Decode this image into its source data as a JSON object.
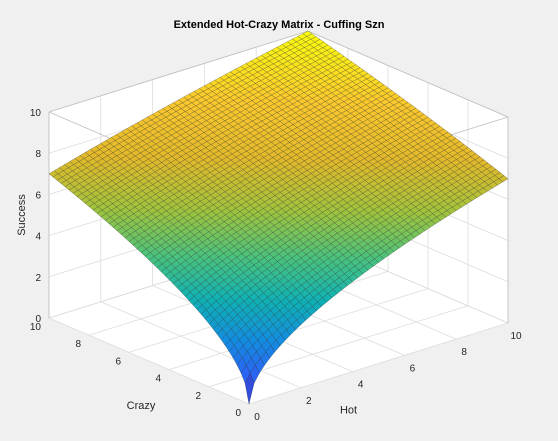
{
  "chart_data": {
    "type": "surface",
    "title": "Extended Hot-Crazy Matrix - Cuffing Szn",
    "xlabel": "Hot",
    "ylabel": "Crazy",
    "zlabel": "Success",
    "xlim": [
      0,
      10
    ],
    "ylim": [
      0,
      10
    ],
    "zlim": [
      0,
      10
    ],
    "x_ticks": [
      "0",
      "2",
      "4",
      "6",
      "8",
      "10"
    ],
    "y_ticks": [
      "0",
      "2",
      "4",
      "6",
      "8",
      "10"
    ],
    "z_ticks": [
      "0",
      "2",
      "4",
      "6",
      "8",
      "10"
    ],
    "grid": true,
    "colormap": "parula",
    "mesh_edges": true,
    "corner_values": [
      {
        "hot": 0,
        "crazy": 0,
        "success": 0
      },
      {
        "hot": 10,
        "crazy": 0,
        "success": 7.0
      },
      {
        "hot": 0,
        "crazy": 10,
        "success": 7.0
      },
      {
        "hot": 10,
        "crazy": 10,
        "success": 10.0
      }
    ],
    "surface_shape": "square root (concave)"
  },
  "colors": {
    "figure_background": "#f0f0f0",
    "axes_background": "#ffffff",
    "grid": "#dcdcdc",
    "box": "#bfbfbf",
    "text": "#262626"
  }
}
